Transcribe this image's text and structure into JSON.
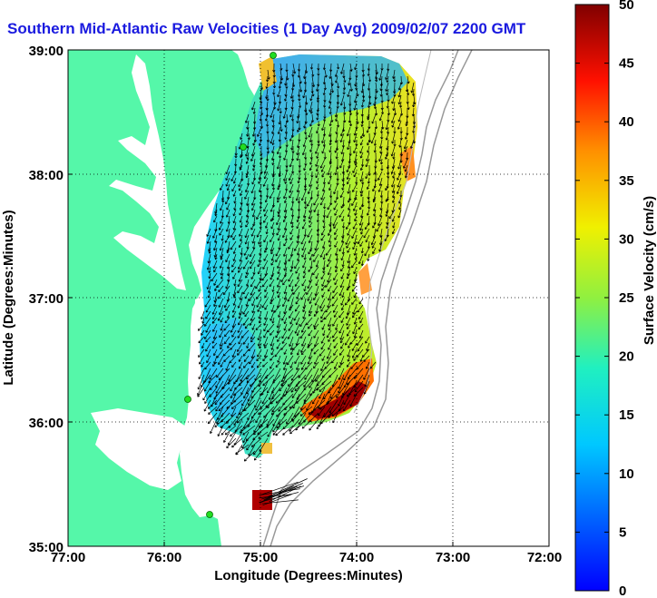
{
  "title": "Southern Mid-Atlantic Raw Velocities (1 Day Avg) 2009/02/07 2200 GMT",
  "x_axis": {
    "label": "Longitude (Degrees:Minutes)",
    "ticks": [
      "77:00",
      "76:00",
      "75:00",
      "74:00",
      "73:00",
      "72:00"
    ]
  },
  "y_axis": {
    "label": "Latitude (Degrees:Minutes)",
    "ticks": [
      "39:00",
      "38:00",
      "37:00",
      "36:00",
      "35:00"
    ]
  },
  "colorbar": {
    "label": "Surface Velocity (cm/s)",
    "ticks": [
      "0",
      "5",
      "10",
      "15",
      "20",
      "25",
      "30",
      "35",
      "40",
      "45",
      "50"
    ],
    "min": 0,
    "max": 50
  },
  "colors": {
    "land": "#55f7a9",
    "water": "#ffffff",
    "title": "#1a1adf",
    "station": "#22dd22"
  }
}
